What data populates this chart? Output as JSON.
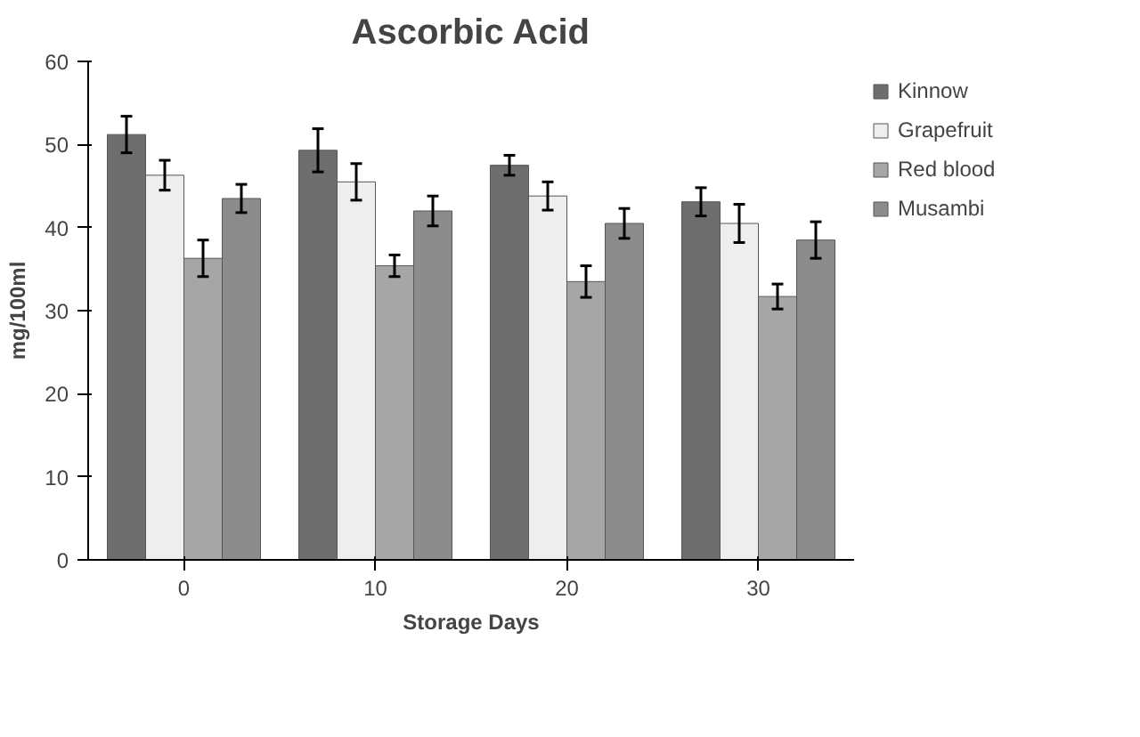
{
  "chart_data": {
    "type": "bar",
    "title": "Ascorbic Acid",
    "xlabel": "Storage Days",
    "ylabel": "mg/100ml",
    "categories": [
      "0",
      "10",
      "20",
      "30"
    ],
    "series": [
      {
        "name": "Kinnow",
        "color": "#6e6e6e",
        "values": [
          51.2,
          49.3,
          47.5,
          43.1
        ],
        "errors": [
          2.2,
          2.6,
          1.2,
          1.7
        ]
      },
      {
        "name": "Grapefruit",
        "color": "#eeeeee",
        "values": [
          46.3,
          45.5,
          43.8,
          40.5
        ],
        "errors": [
          1.8,
          2.2,
          1.7,
          2.3
        ]
      },
      {
        "name": "Red blood",
        "color": "#a6a6a6",
        "values": [
          36.3,
          35.4,
          33.5,
          31.7
        ],
        "errors": [
          2.2,
          1.3,
          1.9,
          1.5
        ]
      },
      {
        "name": "Musambi",
        "color": "#8c8c8c",
        "values": [
          43.5,
          42.0,
          40.5,
          38.5
        ],
        "errors": [
          1.7,
          1.8,
          1.8,
          2.2
        ]
      }
    ],
    "ylim": [
      0,
      60
    ],
    "yticks": [
      0,
      10,
      20,
      30,
      40,
      50,
      60
    ],
    "grid": false,
    "legend": "top right"
  }
}
